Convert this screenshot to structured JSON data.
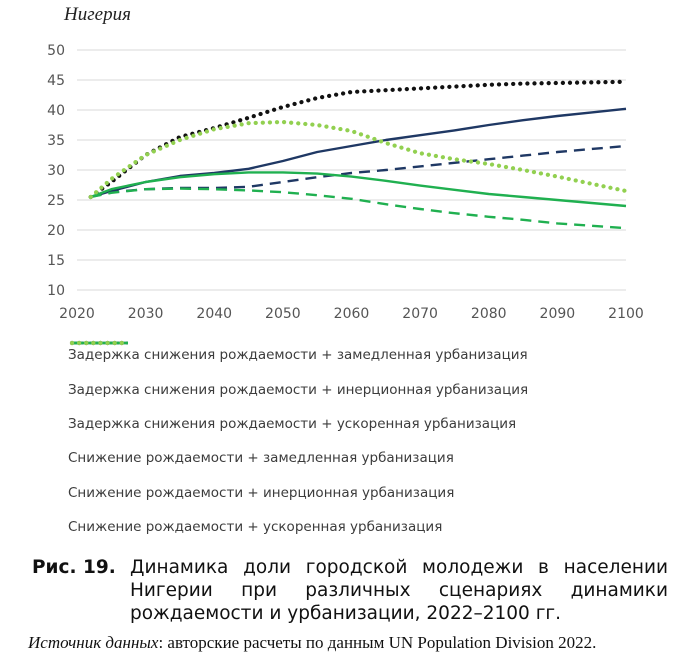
{
  "chart_data": {
    "type": "line",
    "title": "Нигерия",
    "xlabel": "",
    "ylabel": "",
    "xlim": [
      2020,
      2100
    ],
    "ylim": [
      10,
      50
    ],
    "x_ticks": [
      2020,
      2030,
      2040,
      2050,
      2060,
      2070,
      2080,
      2090,
      2100
    ],
    "y_ticks": [
      10,
      15,
      20,
      25,
      30,
      35,
      40,
      45,
      50
    ],
    "grid": "horizontal",
    "legend_position": "bottom",
    "x": [
      2022,
      2025,
      2030,
      2035,
      2040,
      2045,
      2050,
      2055,
      2060,
      2065,
      2070,
      2075,
      2080,
      2085,
      2090,
      2095,
      2100
    ],
    "series": [
      {
        "name": "Задержка снижения рождаемости + замедленная урбанизация",
        "color": "#1f3864",
        "style": "dashed",
        "values": [
          25.5,
          26.3,
          26.8,
          27.0,
          27.0,
          27.2,
          28.0,
          28.8,
          29.5,
          30.0,
          30.6,
          31.2,
          31.8,
          32.4,
          33.0,
          33.5,
          34.0
        ]
      },
      {
        "name": "Задержка снижения рождаемости + инерционная урбанизация",
        "color": "#1f3864",
        "style": "solid",
        "values": [
          25.5,
          26.5,
          28.0,
          29.0,
          29.5,
          30.2,
          31.5,
          33.0,
          34.0,
          35.0,
          35.8,
          36.6,
          37.5,
          38.3,
          39.0,
          39.6,
          40.2
        ]
      },
      {
        "name": "Задержка снижения рождаемости + ускоренная урбанизация",
        "color": "#111111",
        "style": "dotted",
        "values": [
          25.5,
          28.0,
          32.5,
          35.5,
          37.0,
          38.7,
          40.5,
          42.0,
          43.0,
          43.3,
          43.6,
          43.9,
          44.2,
          44.4,
          44.5,
          44.6,
          44.7
        ]
      },
      {
        "name": "Снижение рождаемости + замедленная урбанизация",
        "color": "#20b050",
        "style": "dashed",
        "values": [
          25.5,
          26.2,
          26.8,
          26.9,
          26.8,
          26.6,
          26.3,
          25.8,
          25.2,
          24.3,
          23.5,
          22.8,
          22.2,
          21.7,
          21.1,
          20.7,
          20.3
        ]
      },
      {
        "name": "Снижение рождаемости + инерционная урбанизация",
        "color": "#20b050",
        "style": "solid",
        "values": [
          25.5,
          26.8,
          28.0,
          28.8,
          29.3,
          29.6,
          29.6,
          29.4,
          28.9,
          28.2,
          27.4,
          26.7,
          26.0,
          25.5,
          25.0,
          24.5,
          24.0
        ]
      },
      {
        "name": "Снижение рождаемости + ускоренная урбанизация",
        "color": "#92d050",
        "style": "dotted",
        "values": [
          25.5,
          28.5,
          32.5,
          35.0,
          36.8,
          37.8,
          38.0,
          37.5,
          36.5,
          34.5,
          32.8,
          31.8,
          31.0,
          30.0,
          28.9,
          27.7,
          26.5
        ]
      }
    ]
  },
  "caption": {
    "label": "Рис. 19.",
    "text": "Динамика доли городской молодежи в населении Нигерии при различных сценариях динамики рождаемости и урбанизации, 2022–2100 гг."
  },
  "source": {
    "label": "Источник данных",
    "text": ": авторские расчеты по данным UN Population Division 2022."
  }
}
